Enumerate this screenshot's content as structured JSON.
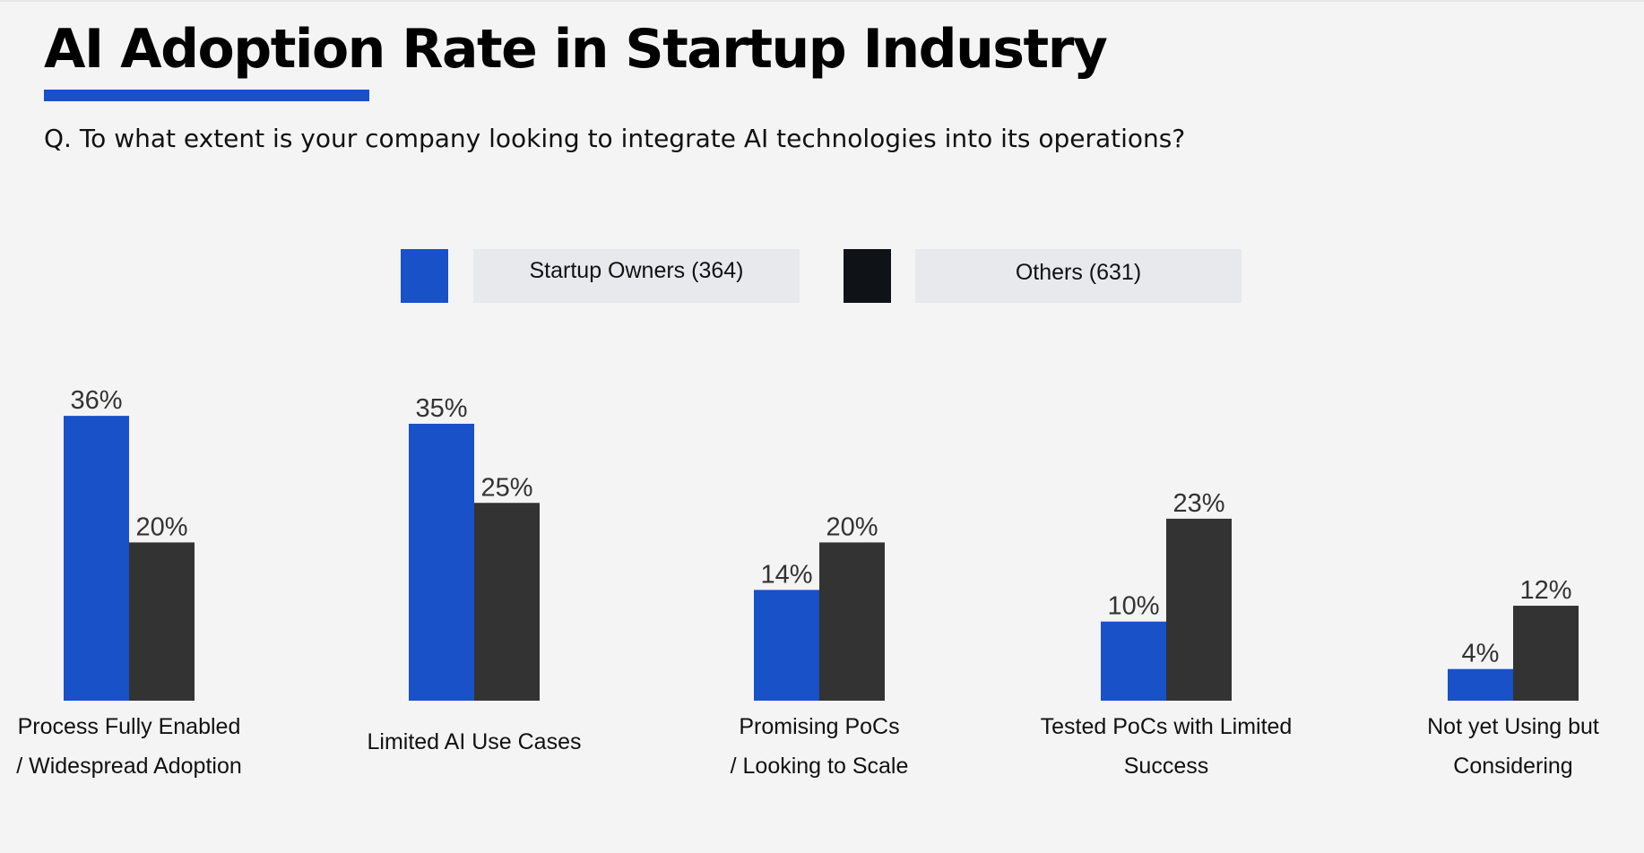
{
  "title": "AI Adoption Rate in Startup Industry",
  "subtitle": "Q. To what extent is your company looking to integrate AI technologies into its operations?",
  "chart_data": {
    "type": "bar",
    "categories": [
      [
        "Process Fully Enabled",
        "/ Widespread Adoption"
      ],
      [
        "Limited AI Use Cases"
      ],
      [
        "Promising PoCs",
        "/ Looking to Scale"
      ],
      [
        "Tested PoCs with Limited",
        "Success"
      ],
      [
        "Not yet Using but",
        "Considering"
      ]
    ],
    "series": [
      {
        "name": "Startup Owners (364)",
        "color": "#1851c8",
        "values": [
          36,
          35,
          14,
          10,
          4
        ],
        "labels": [
          "36%",
          "35%",
          "14%",
          "10%",
          "4%"
        ]
      },
      {
        "name": "Others (631)",
        "color": "#333333",
        "values": [
          20,
          25,
          20,
          23,
          12
        ],
        "labels": [
          "20%",
          "25%",
          "20%",
          "23%",
          "12%"
        ]
      }
    ],
    "legend_swatch_colors": [
      "#1851c8",
      "#0f1317"
    ],
    "unit": "%",
    "ylim": [
      0,
      40
    ],
    "grid": false,
    "legend_placement": "top-center"
  }
}
